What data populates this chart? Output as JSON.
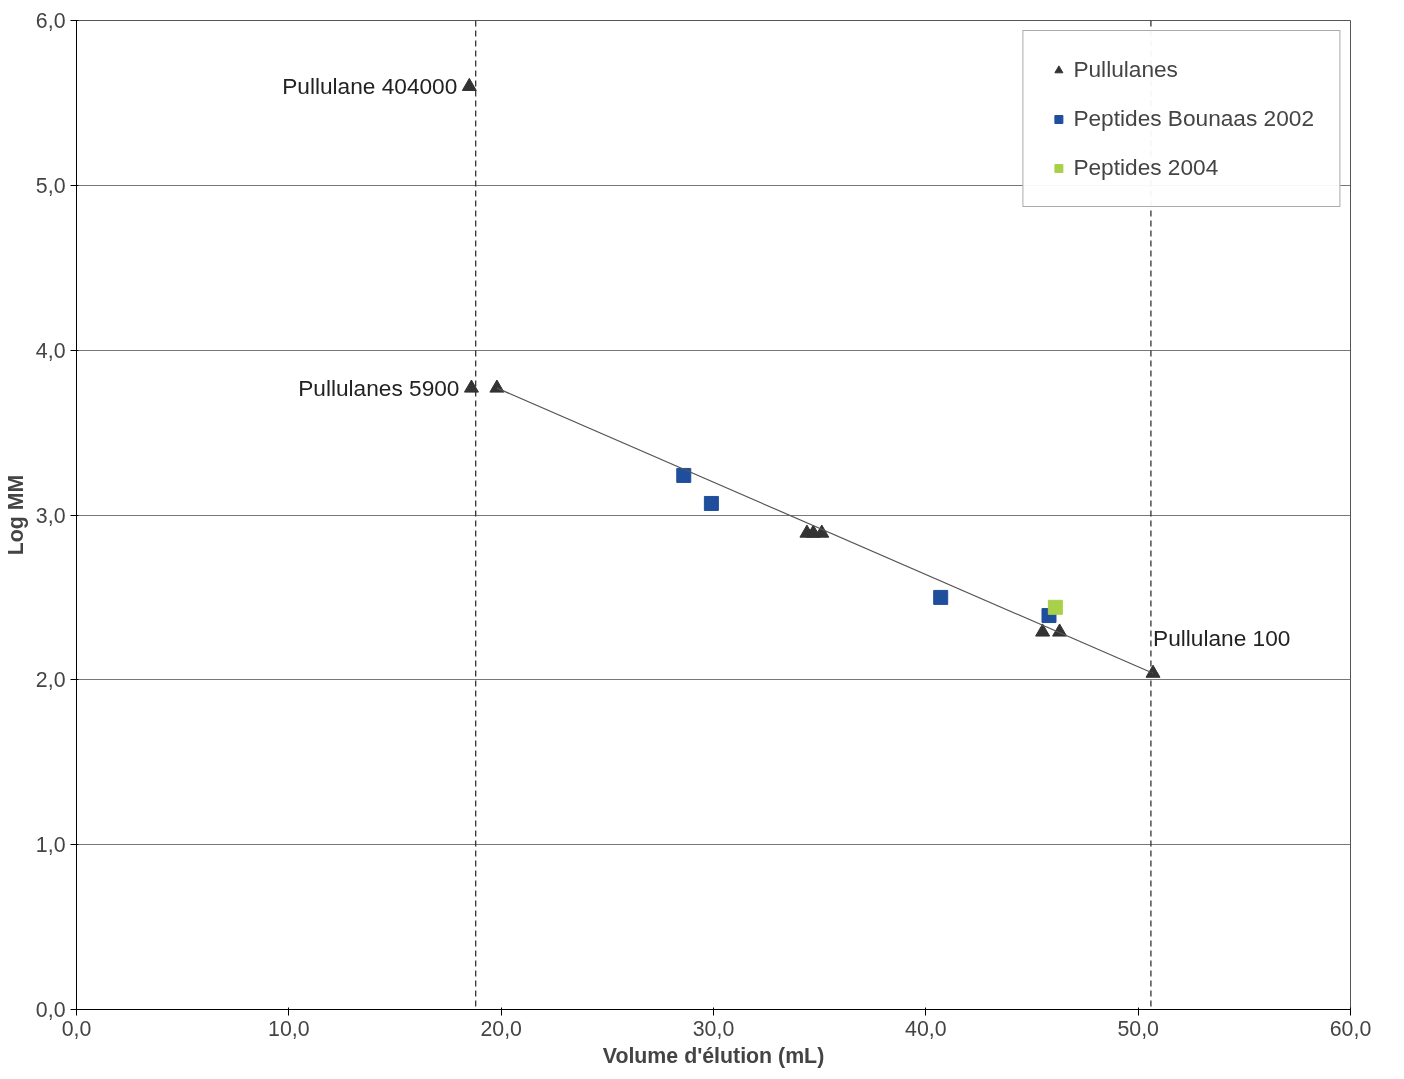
{
  "chart_data": {
    "type": "scatter",
    "xlabel": "Volume d'élution (mL)",
    "ylabel": "Log MM",
    "xlim": [
      0,
      60
    ],
    "ylim": [
      0,
      6
    ],
    "xticks": [
      {
        "value": 0,
        "label": "0,0"
      },
      {
        "value": 10,
        "label": "10,0"
      },
      {
        "value": 20,
        "label": "20,0"
      },
      {
        "value": 30,
        "label": "30,0"
      },
      {
        "value": 40,
        "label": "40,0"
      },
      {
        "value": 50,
        "label": "50,0"
      },
      {
        "value": 60,
        "label": "60,0"
      }
    ],
    "yticks": [
      {
        "value": 0,
        "label": "0,0"
      },
      {
        "value": 1,
        "label": "1,0"
      },
      {
        "value": 2,
        "label": "2,0"
      },
      {
        "value": 3,
        "label": "3,0"
      },
      {
        "value": 4,
        "label": "4,0"
      },
      {
        "value": 5,
        "label": "5,0"
      },
      {
        "value": 6,
        "label": "6,0"
      }
    ],
    "grid": "y",
    "legend": "top right",
    "series": [
      {
        "name": "Pullulanes",
        "color": "#333333",
        "marker": "triangle",
        "x": [
          18.5,
          18.6,
          19.8,
          34.4,
          34.7,
          35.1,
          45.5,
          46.3,
          50.7
        ],
        "values": [
          5.6,
          3.77,
          3.77,
          2.89,
          2.89,
          2.89,
          2.29,
          2.29,
          2.04
        ]
      },
      {
        "name": "Peptides Bounaas 2002",
        "color": "#1f4e9c",
        "marker": "square",
        "x": [
          28.6,
          29.9,
          40.7,
          45.8
        ],
        "values": [
          3.24,
          3.07,
          2.5,
          2.39
        ]
      },
      {
        "name": "Peptides 2004",
        "color": "#a8d04a",
        "marker": "square",
        "x": [
          46.1
        ],
        "values": [
          2.44
        ]
      },
      {
        "type": "line",
        "color": "#555555",
        "line_style": "solid",
        "marker": "none",
        "x": [
          19.8,
          50.7
        ],
        "values": [
          3.77,
          2.04
        ]
      }
    ],
    "ref_lines": [
      {
        "axis": "x",
        "value": 18.8,
        "line_style": "dashed",
        "color": "#333333"
      },
      {
        "axis": "x",
        "value": 50.6,
        "line_style": "dashed",
        "color": "#333333"
      }
    ],
    "annotations": [
      {
        "text": "Pullulane 404000",
        "x": 18.5,
        "y": 5.6
      },
      {
        "text": "Pullulanes 5900",
        "x": 18.6,
        "y": 3.77
      },
      {
        "text": "Pullulane 100",
        "x": 50.7,
        "y": 2.04
      }
    ]
  }
}
